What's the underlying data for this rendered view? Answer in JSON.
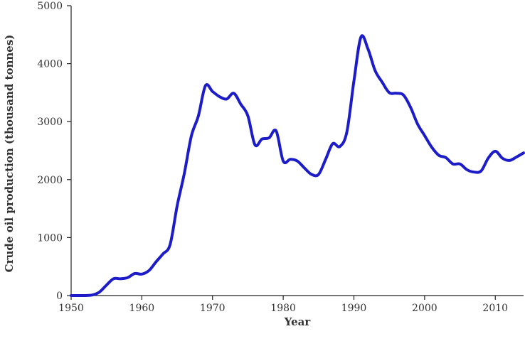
{
  "chart_data": {
    "type": "line",
    "title": "",
    "xlabel": "Year",
    "ylabel": "Crude oil production  (thousand tonnes)",
    "xlim": [
      1950,
      2014
    ],
    "ylim": [
      0,
      5000
    ],
    "x_ticks": [
      1950,
      1960,
      1970,
      1980,
      1990,
      2000,
      2010
    ],
    "y_ticks": [
      0,
      1000,
      2000,
      3000,
      4000,
      5000
    ],
    "grid": false,
    "legend": "none",
    "series": [
      {
        "color": "#1c1cc8",
        "x": [
          1950,
          1951,
          1952,
          1953,
          1954,
          1955,
          1956,
          1957,
          1958,
          1959,
          1960,
          1961,
          1962,
          1963,
          1964,
          1965,
          1966,
          1967,
          1968,
          1969,
          1970,
          1971,
          1972,
          1973,
          1974,
          1975,
          1976,
          1977,
          1978,
          1979,
          1980,
          1981,
          1982,
          1983,
          1984,
          1985,
          1986,
          1987,
          1988,
          1989,
          1990,
          1991,
          1992,
          1993,
          1994,
          1995,
          1996,
          1997,
          1998,
          1999,
          2000,
          2001,
          2002,
          2003,
          2004,
          2005,
          2006,
          2007,
          2008,
          2009,
          2010,
          2011,
          2012,
          2013,
          2014
        ],
        "y": [
          0,
          0,
          0,
          10,
          60,
          180,
          290,
          290,
          310,
          380,
          370,
          430,
          580,
          720,
          880,
          1550,
          2100,
          2750,
          3100,
          3620,
          3520,
          3430,
          3390,
          3490,
          3300,
          3100,
          2600,
          2700,
          2720,
          2840,
          2320,
          2350,
          2320,
          2200,
          2090,
          2090,
          2350,
          2620,
          2570,
          2820,
          3700,
          4460,
          4250,
          3880,
          3680,
          3500,
          3490,
          3460,
          3250,
          2960,
          2760,
          2560,
          2420,
          2380,
          2270,
          2270,
          2170,
          2130,
          2150,
          2370,
          2490,
          2370,
          2330,
          2390,
          2460
        ]
      }
    ]
  }
}
